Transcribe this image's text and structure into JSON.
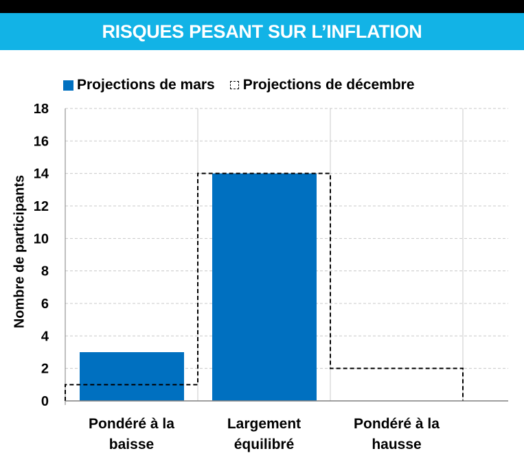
{
  "header": {
    "title": "RISQUES PESANT SUR L’INFLATION"
  },
  "chart_data": {
    "type": "bar",
    "title": "RISQUES PESANT SUR L’INFLATION",
    "categories": [
      "Pondéré à la baisse",
      "Largement équilibré",
      "Pondéré à la hausse"
    ],
    "category_lines": [
      [
        "Pondéré à la",
        "baisse"
      ],
      [
        "Largement",
        "équilibré"
      ],
      [
        "Pondéré à la",
        "hausse"
      ]
    ],
    "series": [
      {
        "name": "Projections de mars",
        "values": [
          3,
          14,
          0
        ],
        "color": "#0070c0",
        "style": "solid"
      },
      {
        "name": "Projections de décembre",
        "values": [
          1,
          14,
          2
        ],
        "color": "#000000",
        "style": "dashed-outline"
      }
    ],
    "xlabel": "",
    "ylabel": "Nombre de participants",
    "ylim": [
      0,
      18
    ],
    "yticks": [
      0,
      2,
      4,
      6,
      8,
      10,
      12,
      14,
      16,
      18
    ],
    "grid": true,
    "legend_position": "top"
  }
}
